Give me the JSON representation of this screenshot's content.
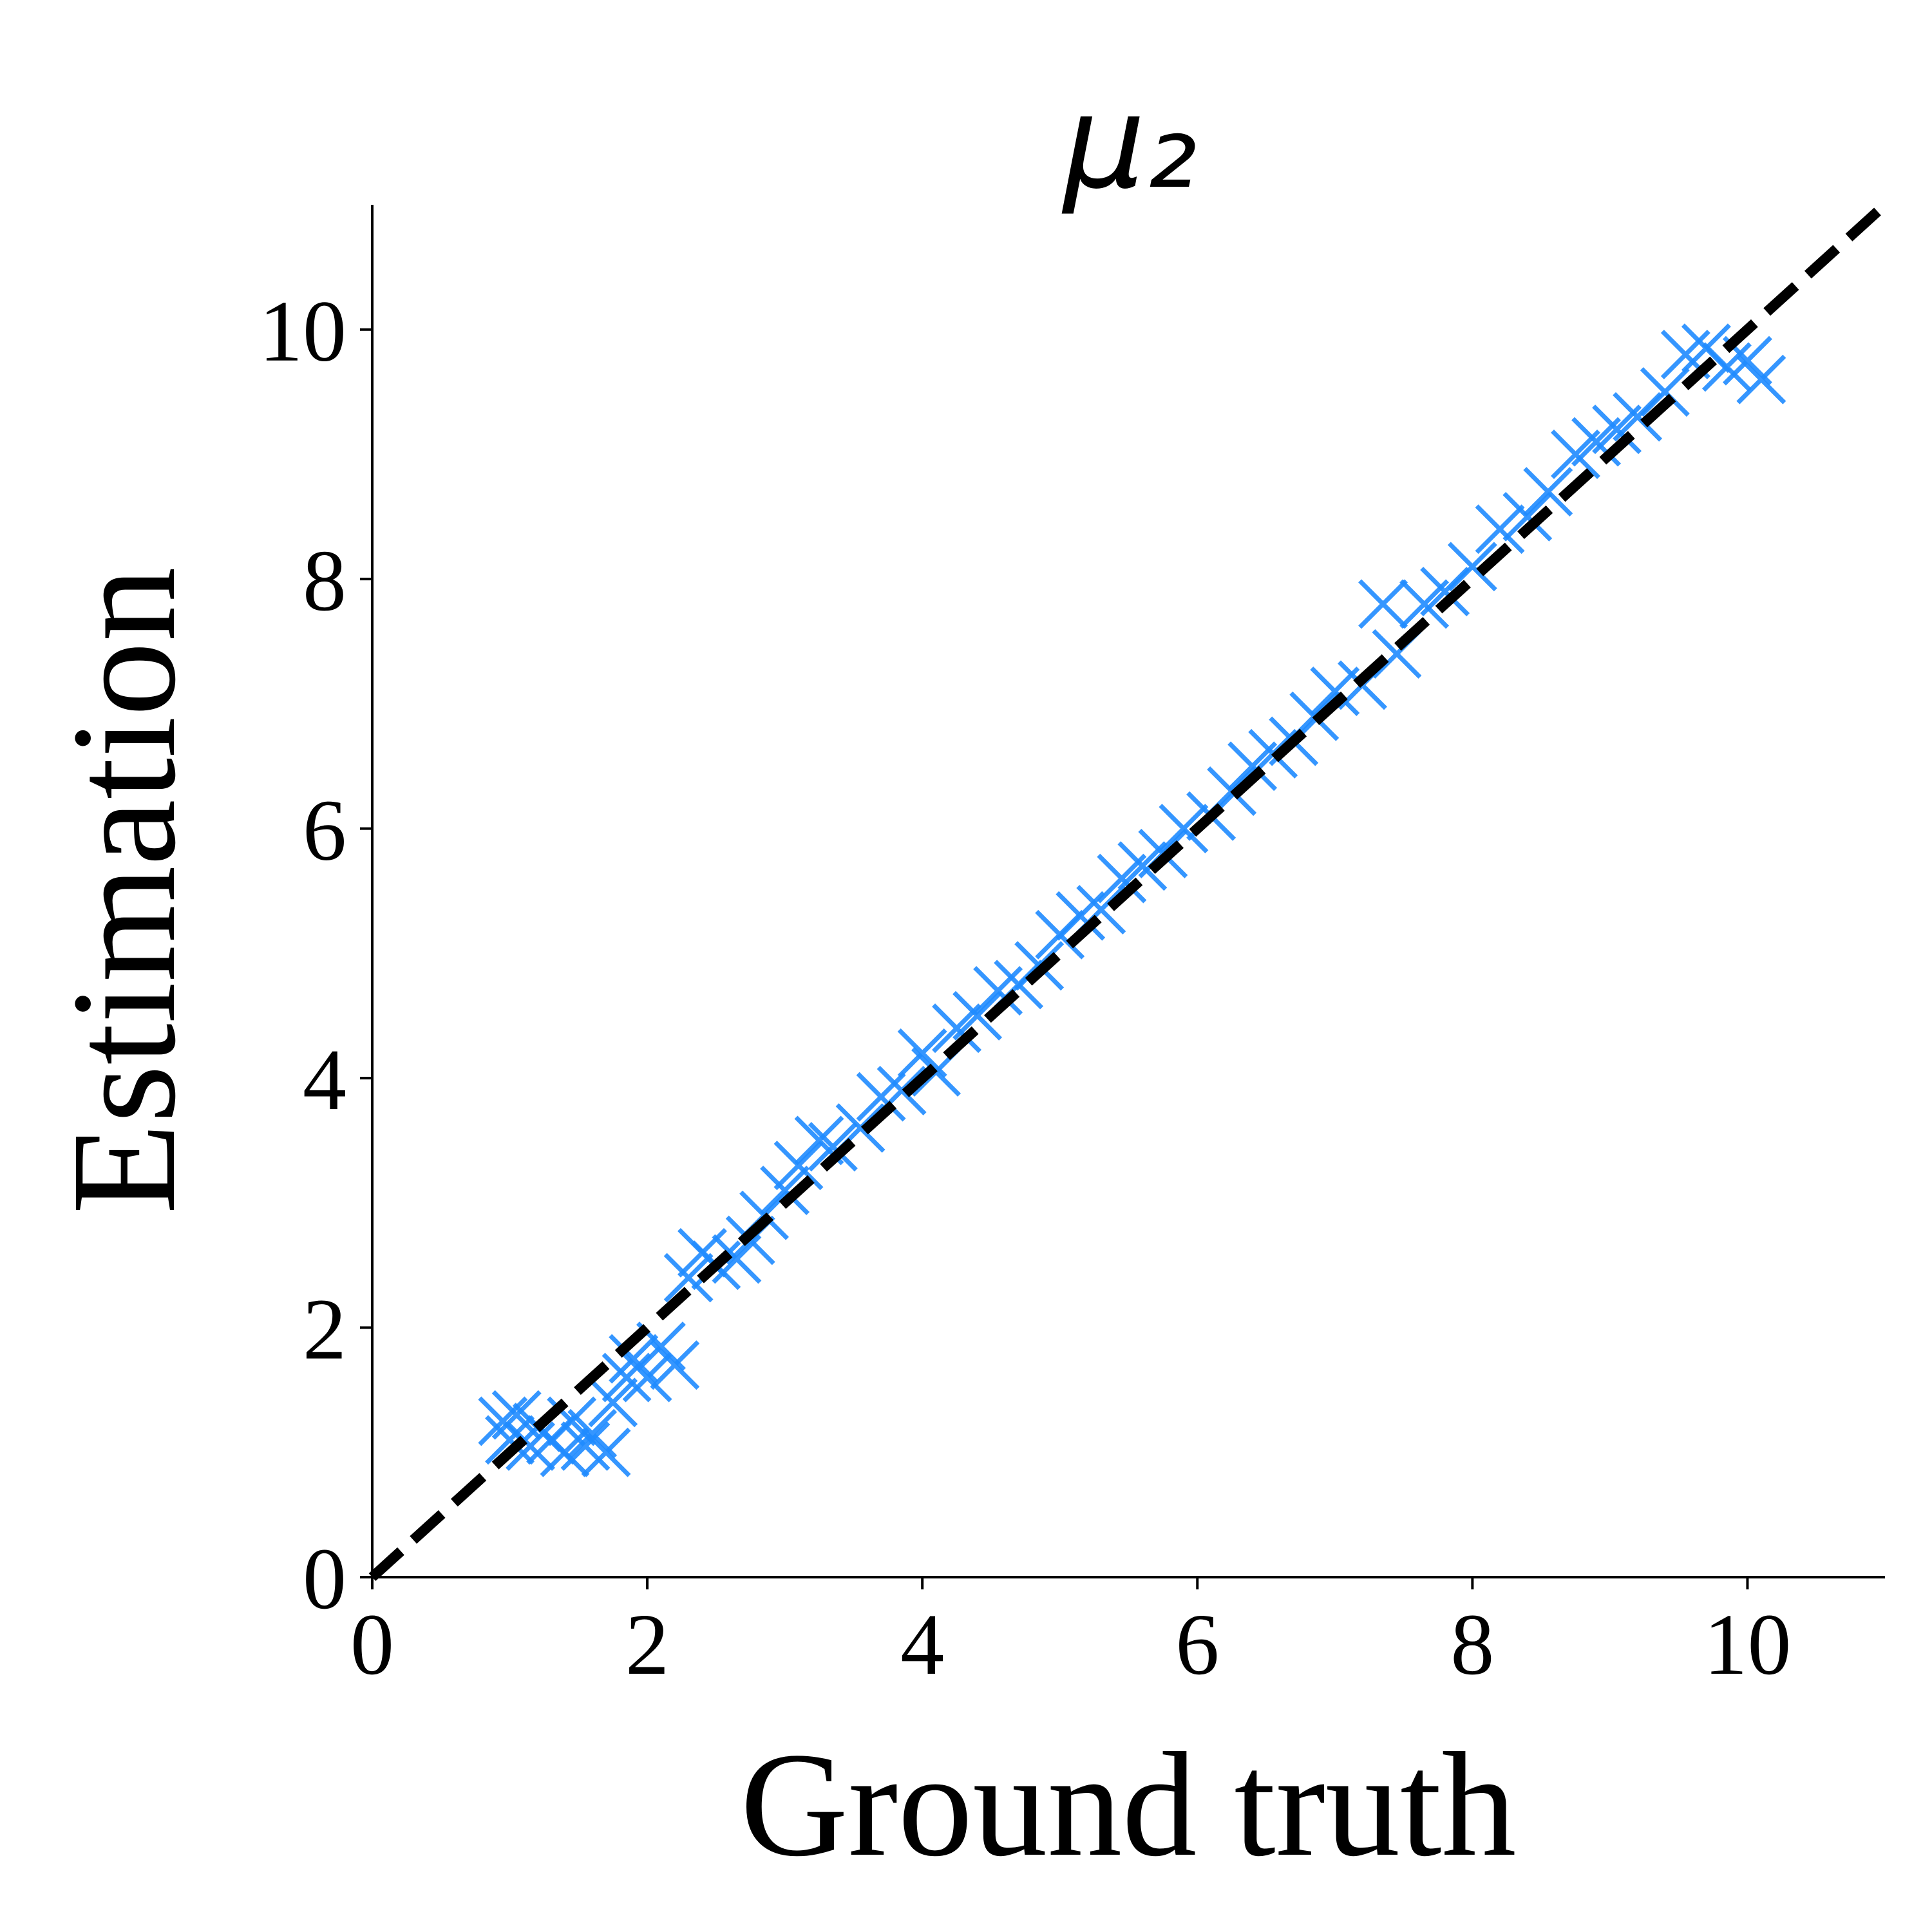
{
  "chart_data": {
    "type": "scatter",
    "title": "μ₂",
    "xlabel": "Ground truth",
    "ylabel": "Estimation",
    "xlim": [
      0,
      11
    ],
    "ylim": [
      0,
      11
    ],
    "xticks": [
      0,
      2,
      4,
      6,
      8,
      10
    ],
    "yticks": [
      0,
      2,
      4,
      6,
      8,
      10
    ],
    "marker": "x",
    "reference_line": {
      "x": [
        0,
        11
      ],
      "y": [
        0,
        11
      ],
      "color": "#000000",
      "dashed": true
    },
    "series": [
      {
        "color": "#1f8bff",
        "x": [
          0.95,
          1.0,
          1.05,
          1.15,
          1.2,
          1.3,
          1.4,
          1.45,
          1.55,
          1.6,
          1.7,
          1.75,
          1.85,
          1.9,
          2.0,
          2.1,
          2.2,
          2.3,
          2.4,
          2.5,
          2.65,
          2.75,
          2.85,
          3.0,
          3.1,
          3.25,
          3.35,
          3.55,
          3.7,
          3.85,
          4.0,
          4.1,
          4.25,
          4.4,
          4.55,
          4.7,
          4.85,
          5.0,
          5.15,
          5.3,
          5.45,
          5.6,
          5.75,
          5.9,
          6.1,
          6.25,
          6.4,
          6.55,
          6.7,
          6.85,
          7.0,
          7.2,
          7.35,
          7.45,
          7.65,
          7.8,
          8.0,
          8.2,
          8.4,
          8.55,
          8.75,
          8.9,
          9.05,
          9.2,
          9.4,
          9.55,
          9.7,
          9.85,
          10.0,
          10.1
        ],
        "values": [
          1.25,
          1.1,
          1.3,
          1.05,
          1.2,
          1.1,
          1.0,
          1.25,
          1.05,
          1.15,
          1.0,
          1.4,
          1.6,
          1.75,
          1.6,
          1.85,
          1.7,
          2.4,
          2.6,
          2.5,
          2.55,
          2.7,
          2.9,
          3.1,
          3.3,
          3.5,
          3.45,
          3.6,
          3.85,
          3.9,
          4.2,
          4.05,
          4.4,
          4.5,
          4.7,
          4.75,
          4.9,
          5.15,
          5.3,
          5.35,
          5.6,
          5.7,
          5.8,
          6.0,
          6.1,
          6.3,
          6.5,
          6.6,
          6.7,
          6.9,
          7.1,
          7.15,
          7.8,
          7.4,
          7.8,
          7.9,
          8.1,
          8.4,
          8.5,
          8.7,
          9.0,
          9.1,
          9.2,
          9.3,
          9.5,
          9.8,
          9.85,
          9.7,
          9.75,
          9.6
        ]
      }
    ]
  }
}
